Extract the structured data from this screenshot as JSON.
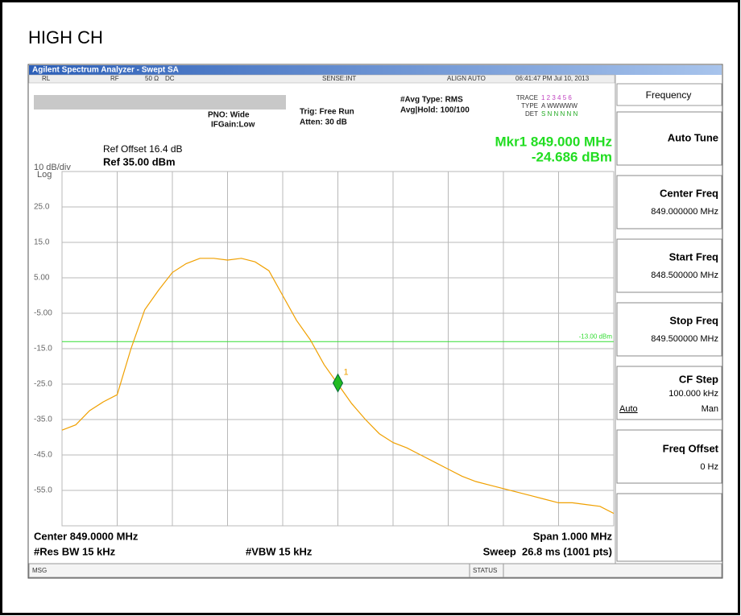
{
  "header": {
    "title": "HIGH CH"
  },
  "window_title": "Agilent Spectrum Analyzer - Swept SA",
  "status_bar": {
    "rl": "RL",
    "rf": "RF",
    "impedance": "50 Ω",
    "coupling": "DC",
    "sense": "SENSE:INT",
    "align": "ALIGN AUTO",
    "time": "06:41:47 PM Jul 10, 2013"
  },
  "settings": {
    "pno": "PNO: Wide",
    "ifgain": "IFGain:Low",
    "trig": "Trig: Free Run",
    "atten": "Atten: 30 dB",
    "avg_type": "#Avg Type: RMS",
    "avg_hold": "Avg|Hold: 100/100",
    "trace_label": "TRACE",
    "trace_values": "1 2 3 4 5 6",
    "type_label": "TYPE",
    "type_values": "A WWWWW",
    "det_label": "DET",
    "det_values": "S N N N N N"
  },
  "reference": {
    "offset": "Ref Offset 16.4 dB",
    "level": "Ref 35.00 dBm",
    "scale": "10 dB/div",
    "scale_type": "Log"
  },
  "marker_readout": {
    "frequency": "Mkr1 849.000 MHz",
    "amplitude": "-24.686 dBm"
  },
  "chart_data": {
    "type": "line",
    "x": [
      848.5,
      848.525,
      848.55,
      848.575,
      848.6,
      848.625,
      848.65,
      848.675,
      848.7,
      848.725,
      848.75,
      848.775,
      848.8,
      848.825,
      848.85,
      848.875,
      848.9,
      848.925,
      848.95,
      848.975,
      849.0,
      849.025,
      849.05,
      849.075,
      849.1,
      849.125,
      849.15,
      849.175,
      849.2,
      849.225,
      849.25,
      849.275,
      849.3,
      849.325,
      849.35,
      849.375,
      849.4,
      849.425,
      849.45,
      849.475,
      849.5
    ],
    "series": [
      {
        "name": "1",
        "color": "#f0a000",
        "values": [
          -38,
          -36.5,
          -32.5,
          -30,
          -28,
          -15,
          -4,
          1.5,
          6.5,
          9,
          10.5,
          10.5,
          10,
          10.5,
          9.5,
          7,
          0,
          -7,
          -12.5,
          -19.5,
          -25,
          -30.5,
          -35,
          -39,
          -41.5,
          -43,
          -45,
          -47,
          -49,
          -51,
          -52.5,
          -53.5,
          -54.5,
          -55.5,
          -56.5,
          -57.5,
          -58.5,
          -58.5,
          -59,
          -59.5,
          -61.5
        ]
      }
    ],
    "xlim": [
      848.5,
      849.5
    ],
    "ylim": [
      -65,
      35
    ],
    "yticks": [
      {
        "value": 25,
        "label": "25.0"
      },
      {
        "value": 15,
        "label": "15.0"
      },
      {
        "value": 5,
        "label": "5.00"
      },
      {
        "value": -5,
        "label": "-5.00"
      },
      {
        "value": -15,
        "label": "-15.0"
      },
      {
        "value": -25,
        "label": "-25.0"
      },
      {
        "value": -35,
        "label": "-35.0"
      },
      {
        "value": -45,
        "label": "-45.0"
      },
      {
        "value": -55,
        "label": "-55.0"
      }
    ],
    "grid": true,
    "grid_color": "#b8b8b8",
    "display_line": {
      "value": -13,
      "label": "-13.00 dBm",
      "color": "#33dd33"
    },
    "marker": {
      "x": 849.0,
      "value": -24.686,
      "label": "1",
      "color": "#22bb22"
    }
  },
  "footer": {
    "center": "Center 849.0000 MHz",
    "res_bw": "#Res BW 15 kHz",
    "vbw": "#VBW 15 kHz",
    "span": "Span 1.000 MHz",
    "sweep": "Sweep  26.8 ms (1001 pts)"
  },
  "message_bar": {
    "msg": "MSG",
    "status": "STATUS"
  },
  "softkeys": {
    "menu": "Frequency",
    "auto_tune": "Auto Tune",
    "center_freq": {
      "label": "Center Freq",
      "value": "849.000000 MHz"
    },
    "start_freq": {
      "label": "Start Freq",
      "value": "848.500000 MHz"
    },
    "stop_freq": {
      "label": "Stop Freq",
      "value": "849.500000 MHz"
    },
    "cf_step": {
      "label": "CF Step",
      "value": "100.000 kHz",
      "auto": "Auto",
      "man": "Man"
    },
    "freq_offset": {
      "label": "Freq Offset",
      "value": "0 Hz"
    }
  }
}
